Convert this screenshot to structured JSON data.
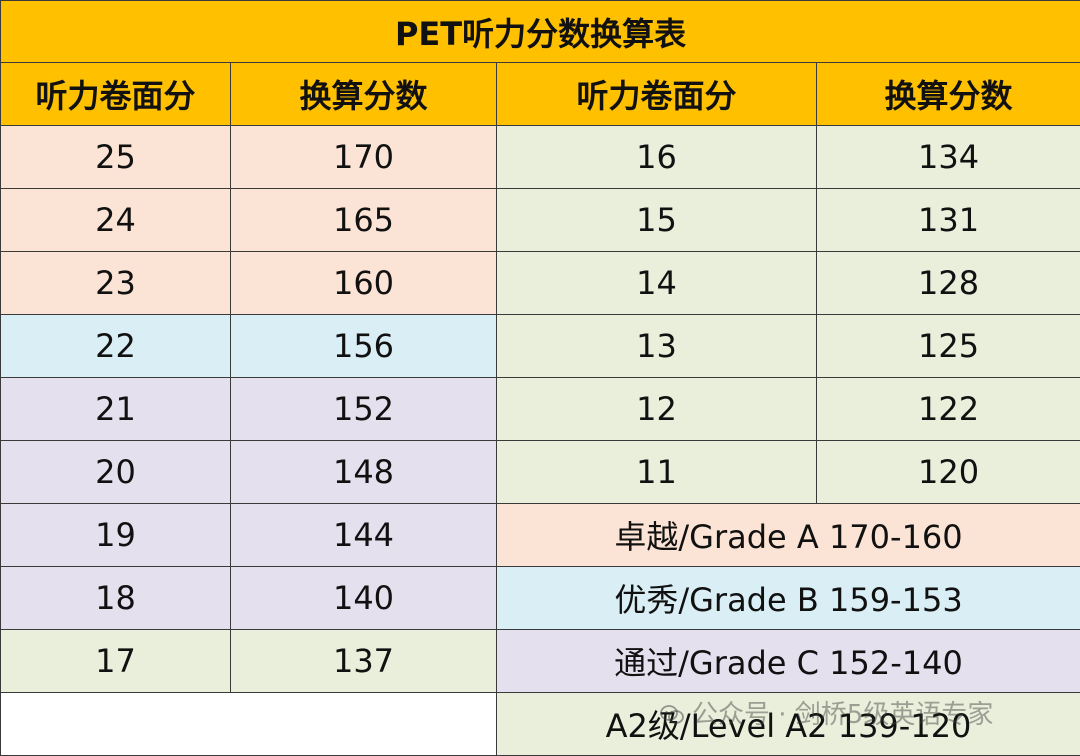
{
  "title": "PET听力分数换算表",
  "headers": [
    "听力卷面分",
    "换算分数",
    "听力卷面分",
    "换算分数"
  ],
  "colors": {
    "header": "#ffc000",
    "peach": "#fbe4d5",
    "blue": "#d9eef5",
    "lavender": "#e4e0ee",
    "green": "#e9efdb",
    "white": "#ffffff"
  },
  "left_rows": [
    {
      "raw": "25",
      "converted": "170",
      "band": "peach"
    },
    {
      "raw": "24",
      "converted": "165",
      "band": "peach"
    },
    {
      "raw": "23",
      "converted": "160",
      "band": "peach"
    },
    {
      "raw": "22",
      "converted": "156",
      "band": "blue"
    },
    {
      "raw": "21",
      "converted": "152",
      "band": "lavender"
    },
    {
      "raw": "20",
      "converted": "148",
      "band": "lavender"
    },
    {
      "raw": "19",
      "converted": "144",
      "band": "lavender"
    },
    {
      "raw": "18",
      "converted": "140",
      "band": "lavender"
    },
    {
      "raw": "17",
      "converted": "137",
      "band": "green"
    }
  ],
  "right_rows": [
    {
      "raw": "16",
      "converted": "134"
    },
    {
      "raw": "15",
      "converted": "131"
    },
    {
      "raw": "14",
      "converted": "128"
    },
    {
      "raw": "13",
      "converted": "125"
    },
    {
      "raw": "12",
      "converted": "122"
    },
    {
      "raw": "11",
      "converted": "120"
    }
  ],
  "grades": [
    {
      "label": "卓越/Grade A 170-160",
      "band": "peach"
    },
    {
      "label": "优秀/Grade B 159-153",
      "band": "blue"
    },
    {
      "label": "通过/Grade C 152-140",
      "band": "lavender"
    },
    {
      "label": "A2级/Level A2 139-120",
      "band": "green"
    }
  ],
  "watermark": "公众号 · 剑桥5级英语专家",
  "watermark_icon": "wechat-icon"
}
